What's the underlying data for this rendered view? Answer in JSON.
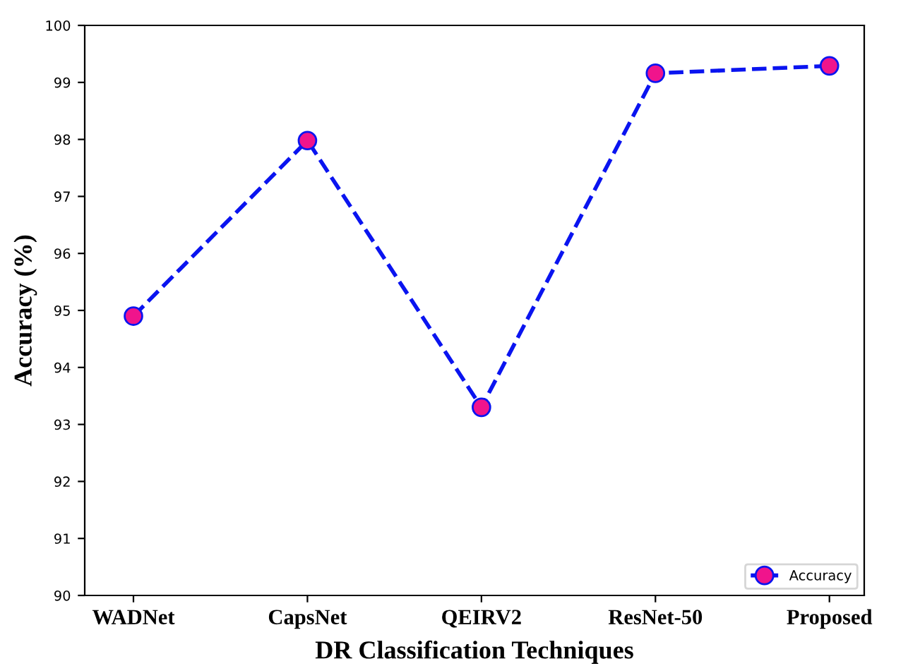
{
  "chart_data": {
    "type": "line",
    "xlabel": "DR Classification Techniques",
    "ylabel": "Accuracy (%)",
    "categories": [
      "WADNet",
      "CapsNet",
      "QEIRV2",
      "ResNet-50",
      "Proposed"
    ],
    "series": [
      {
        "name": "Accuracy",
        "color": "#0a14f0",
        "colors": [
          "#f0148c",
          "#f0148c",
          "#f0148c",
          "#f0148c",
          "#f0148c"
        ],
        "values": [
          94.9,
          97.98,
          93.3,
          99.16,
          99.29
        ]
      }
    ],
    "ylim": [
      90,
      100
    ],
    "yticks": [
      90,
      91,
      92,
      93,
      94,
      95,
      96,
      97,
      98,
      99,
      100
    ],
    "marker": "circle",
    "line_style": "dashed",
    "legend": "bottom right",
    "grid": false
  }
}
